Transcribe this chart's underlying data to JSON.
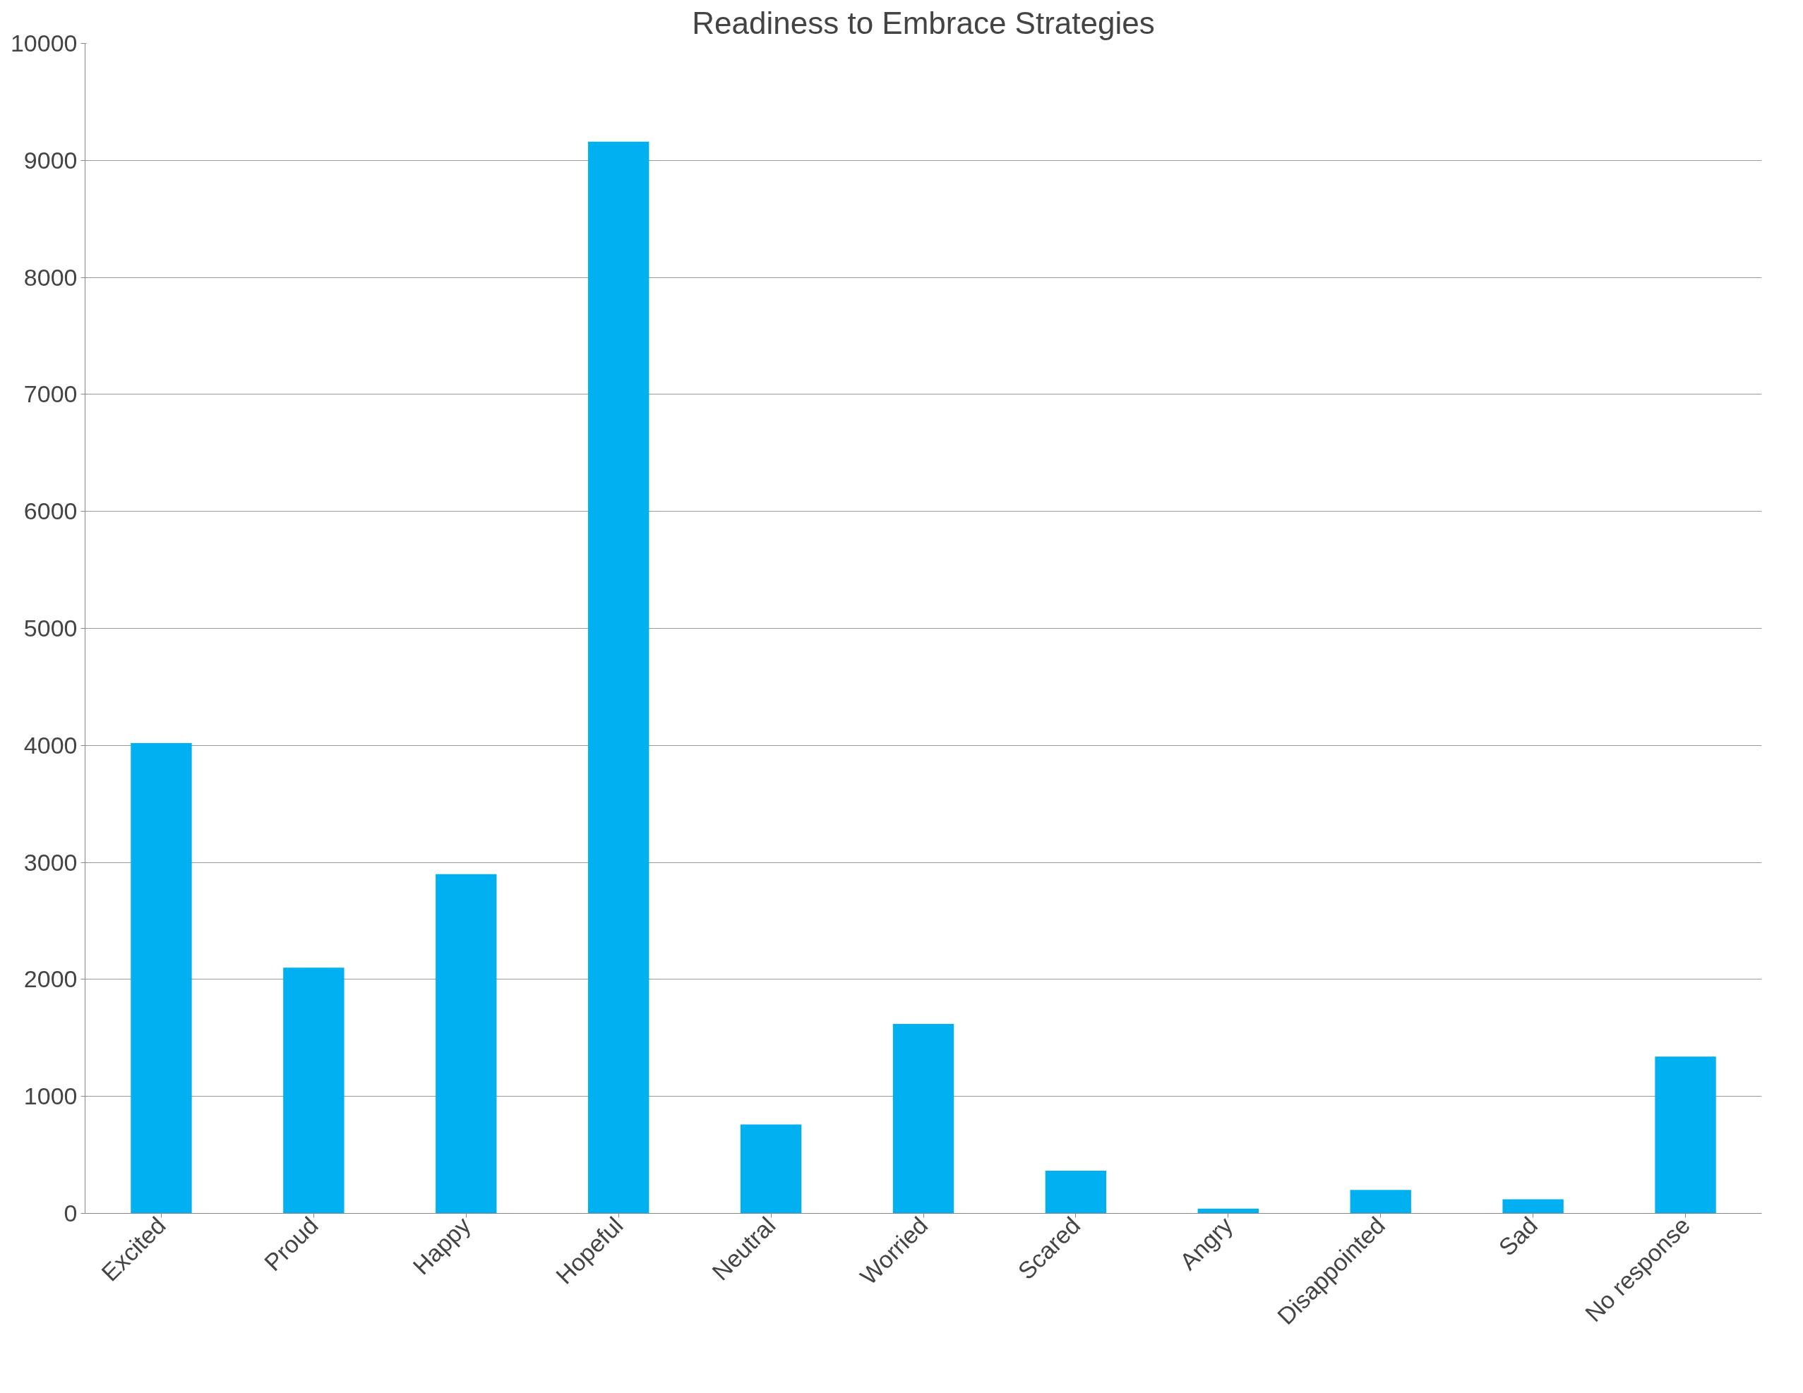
{
  "chart_data": {
    "type": "bar",
    "title": "Readiness to Embrace Strategies",
    "categories": [
      "Excited",
      "Proud",
      "Happy",
      "Hopeful",
      "Neutral",
      "Worried",
      "Scared",
      "Angry",
      "Disappointed",
      "Sad",
      "No response"
    ],
    "values": [
      4020,
      2100,
      2900,
      9160,
      760,
      1620,
      365,
      40,
      200,
      120,
      1340
    ],
    "color": "#00b0f0",
    "ylim": [
      0,
      10000
    ],
    "yticks": [
      0,
      1000,
      2000,
      3000,
      4000,
      5000,
      6000,
      7000,
      8000,
      9000,
      10000
    ],
    "grid": "y"
  }
}
